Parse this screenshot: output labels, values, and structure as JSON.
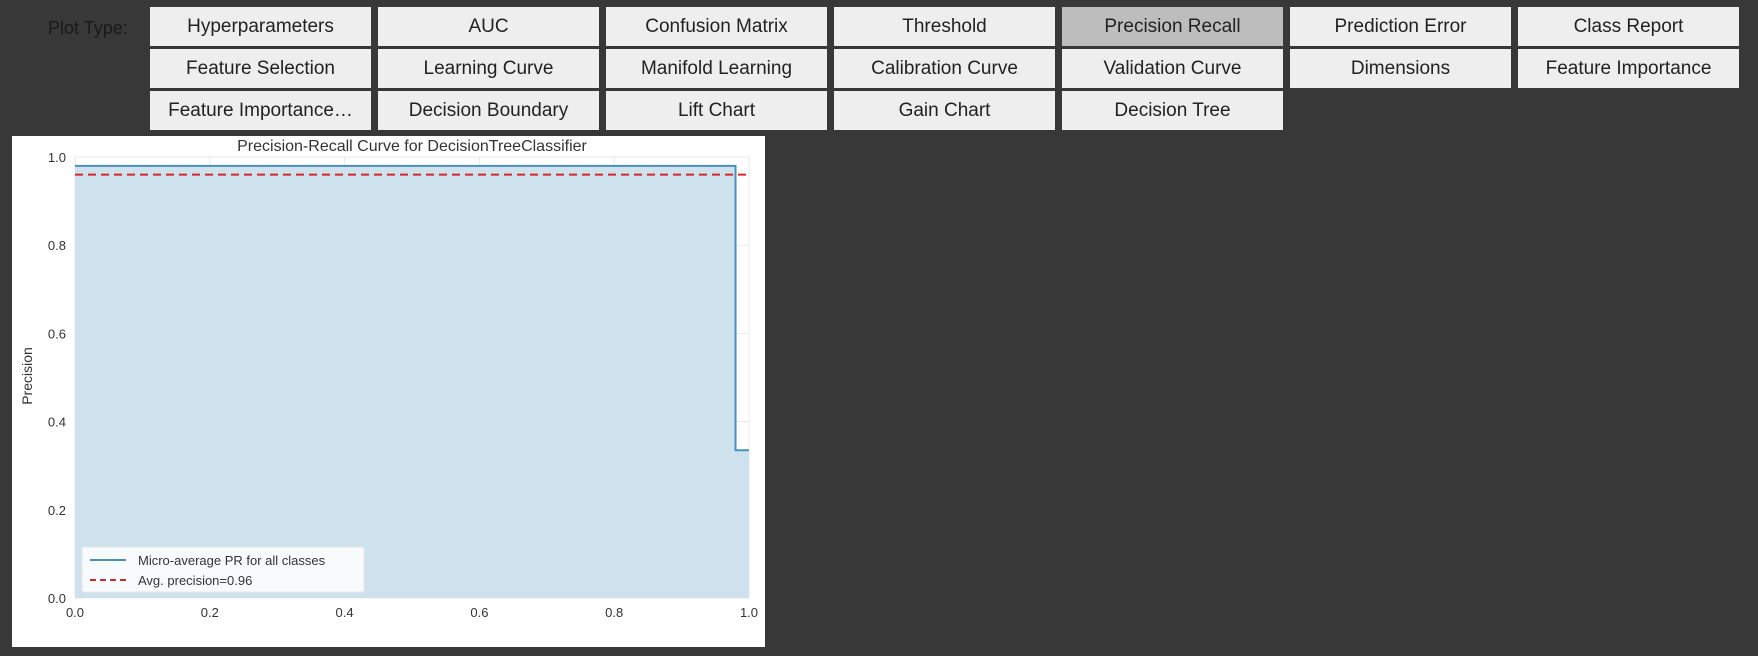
{
  "toolbar": {
    "label": "Plot Type:",
    "buttons": [
      "Hyperparameters",
      "AUC",
      "Confusion Matrix",
      "Threshold",
      "Precision Recall",
      "Prediction Error",
      "Class Report",
      "Feature Selection",
      "Learning Curve",
      "Manifold Learning",
      "Calibration Curve",
      "Validation Curve",
      "Dimensions",
      "Feature Importance",
      "Feature Importance…",
      "Decision Boundary",
      "Lift Chart",
      "Gain Chart",
      "Decision Tree"
    ],
    "selected": "Precision Recall"
  },
  "colors": {
    "page_bg": "#383838",
    "button_bg": "#eeeeee",
    "button_active_bg": "#bdbdbd",
    "curve": "#4a8fbf",
    "fill": "#cde2ec",
    "avg_line": "#d62728"
  },
  "chart_data": {
    "type": "line",
    "title": "Precision-Recall Curve for DecisionTreeClassifier",
    "xlabel": "",
    "ylabel": "Precision",
    "xlim": [
      0.0,
      1.0
    ],
    "ylim": [
      0.0,
      1.0
    ],
    "xticks": [
      "0.0",
      "0.2",
      "0.4",
      "0.6",
      "0.8",
      "1.0"
    ],
    "yticks": [
      "0.0",
      "0.2",
      "0.4",
      "0.6",
      "0.8",
      "1.0"
    ],
    "grid": true,
    "legend_position": "bottom-left",
    "series": [
      {
        "name": "Micro-average PR for all classes",
        "x": [
          0.0,
          0.98,
          0.98,
          1.0
        ],
        "y": [
          0.98,
          0.98,
          0.335,
          0.335
        ],
        "filled": true
      },
      {
        "name": "Avg. precision=0.96",
        "x": [
          0.0,
          1.0
        ],
        "y": [
          0.96,
          0.96
        ],
        "dashed": true
      }
    ]
  }
}
